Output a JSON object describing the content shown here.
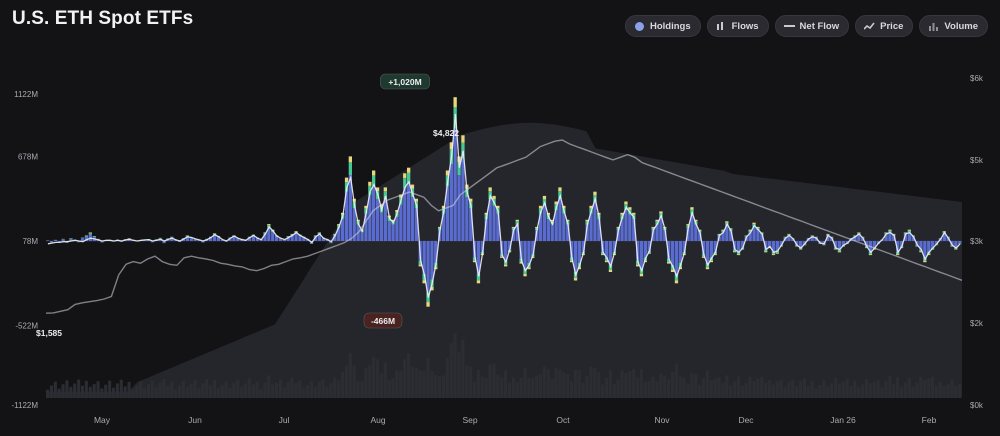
{
  "title": "U.S. ETH Spot ETFs",
  "toggles": [
    {
      "label": "Holdings",
      "icon": "holdings-dot-icon"
    },
    {
      "label": "Flows",
      "icon": "bar-chart-icon"
    },
    {
      "label": "Net Flow",
      "icon": "dash-line-icon"
    },
    {
      "label": "Price",
      "icon": "trend-line-icon"
    },
    {
      "label": "Volume",
      "icon": "volume-bars-icon"
    }
  ],
  "colors": {
    "flow_blue": "#5a6cd0",
    "flow_green": "#47c995",
    "flow_yellow": "#e8d77a",
    "price_line": "#d8d9e6",
    "net_flow_line": "#eef0f8",
    "holdings_area": "#26272d",
    "volume_bars": "#2c2d33",
    "badge_pos": "#1e3a2e",
    "badge_neg": "#4a2220"
  },
  "chart_data": {
    "type": "bar",
    "left_axis": {
      "ticks": [
        {
          "label": "1122M",
          "value": 1122
        },
        {
          "label": "678M",
          "value": 678
        },
        {
          "label": "78M",
          "value": 78
        },
        {
          "label": "-522M",
          "value": -522
        },
        {
          "label": "-1122M",
          "value": -1122
        }
      ],
      "range": [
        -1122,
        1122
      ]
    },
    "right_axis": {
      "ticks": [
        {
          "label": "$6k",
          "value": 6000
        },
        {
          "label": "$5k",
          "value": 5000
        },
        {
          "label": "$3k",
          "value": 3000
        },
        {
          "label": "$2k",
          "value": 2000
        },
        {
          "label": "$0k",
          "value": 0
        }
      ]
    },
    "x_labels": [
      "May",
      "Jun",
      "Jul",
      "Aug",
      "Sep",
      "Oct",
      "Nov",
      "Dec",
      "Jan 26",
      "Feb"
    ],
    "annotations": {
      "peak_inflow": "+1,020M",
      "peak_outflow": "-466M",
      "price_peak": "$4,822",
      "price_start": "$1,585"
    },
    "flows_million": [
      5,
      -10,
      8,
      -6,
      15,
      -12,
      20,
      10,
      -8,
      25,
      40,
      60,
      35,
      15,
      -10,
      5,
      8,
      -5,
      10,
      -6,
      12,
      20,
      8,
      -4,
      6,
      10,
      14,
      -8,
      12,
      22,
      -15,
      18,
      30,
      10,
      -6,
      20,
      40,
      25,
      15,
      8,
      -10,
      15,
      30,
      55,
      35,
      10,
      -5,
      25,
      40,
      20,
      15,
      10,
      30,
      45,
      25,
      15,
      60,
      120,
      80,
      40,
      20,
      10,
      35,
      50,
      70,
      45,
      30,
      15,
      -20,
      40,
      60,
      25,
      15,
      -15,
      50,
      120,
      200,
      450,
      600,
      300,
      150,
      80,
      250,
      420,
      500,
      380,
      260,
      380,
      180,
      150,
      220,
      330,
      480,
      520,
      400,
      300,
      -180,
      -300,
      -466,
      -350,
      -200,
      100,
      250,
      500,
      700,
      1020,
      600,
      750,
      400,
      300,
      -150,
      -300,
      -100,
      200,
      380,
      320,
      250,
      -120,
      -180,
      -80,
      100,
      150,
      -160,
      -250,
      -200,
      -120,
      100,
      250,
      320,
      200,
      150,
      280,
      380,
      250,
      150,
      -150,
      -280,
      -200,
      -100,
      150,
      250,
      350,
      200,
      -100,
      -150,
      -220,
      -100,
      100,
      200,
      280,
      240,
      200,
      -180,
      -250,
      -150,
      -90,
      100,
      150,
      210,
      100,
      -160,
      -220,
      -300,
      -200,
      -100,
      120,
      240,
      150,
      80,
      -120,
      -200,
      -150,
      -100,
      50,
      80,
      140,
      90,
      -80,
      -100,
      -60,
      40,
      80,
      130,
      100,
      60,
      -80,
      -50,
      -100,
      -90,
      -40,
      30,
      50,
      20,
      -40,
      -60,
      -30,
      20,
      40,
      30,
      -20,
      -30,
      50,
      30,
      -60,
      -80,
      -40,
      -20,
      20,
      40,
      60,
      30,
      -50,
      -100,
      -60,
      -20,
      10,
      60,
      80,
      50,
      -100,
      -50,
      60,
      80,
      40,
      -40,
      -80,
      -150,
      -100,
      -60,
      -30,
      20,
      70,
      30,
      -40,
      -60,
      -20
    ],
    "net_flow_million": [
      -20,
      -15,
      -10,
      -10,
      -5,
      -5,
      0,
      5,
      0,
      -5,
      10,
      20,
      15,
      8,
      0,
      5,
      5,
      0,
      5,
      0,
      8,
      12,
      6,
      0,
      5,
      8,
      10,
      0,
      6,
      12,
      0,
      12,
      20,
      8,
      0,
      15,
      30,
      25,
      15,
      8,
      0,
      10,
      25,
      45,
      30,
      10,
      0,
      20,
      35,
      20,
      10,
      5,
      25,
      40,
      20,
      10,
      50,
      100,
      70,
      35,
      20,
      10,
      25,
      40,
      60,
      40,
      25,
      10,
      -10,
      30,
      50,
      20,
      10,
      -5,
      40,
      100,
      180,
      380,
      450,
      250,
      120,
      70,
      200,
      350,
      400,
      330,
      220,
      320,
      160,
      130,
      200,
      290,
      380,
      420,
      330,
      250,
      -140,
      -240,
      -400,
      -300,
      -160,
      80,
      210,
      420,
      600,
      900,
      520,
      640,
      350,
      250,
      -110,
      -250,
      -80,
      170,
      320,
      270,
      210,
      -100,
      -150,
      -60,
      80,
      120,
      -140,
      -210,
      -170,
      -100,
      80,
      210,
      270,
      170,
      120,
      240,
      320,
      210,
      120,
      -120,
      -240,
      -170,
      -80,
      120,
      210,
      300,
      170,
      -80,
      -120,
      -180,
      -80,
      80,
      170,
      240,
      200,
      170,
      -150,
      -210,
      -120,
      -70,
      80,
      120,
      180,
      80,
      -130,
      -180,
      -250,
      -170,
      -80,
      100,
      200,
      120,
      60,
      -100,
      -170,
      -120,
      -80,
      40,
      60,
      120,
      70,
      -60,
      -80,
      -50,
      30,
      60,
      110,
      80,
      50,
      -60,
      -40,
      -80,
      -70,
      -30,
      20,
      40,
      15,
      -30,
      -50,
      -20,
      15,
      30,
      20,
      -15,
      -20,
      40,
      20,
      -50,
      -60,
      -30,
      -15,
      15,
      30,
      50,
      20,
      -40,
      -80,
      -50,
      -15,
      10,
      50,
      60,
      40,
      -80,
      -40,
      50,
      60,
      30,
      -30,
      -60,
      -130,
      -80,
      -50,
      -20,
      15,
      60,
      20,
      -30,
      -50,
      -20
    ],
    "price_usd": [
      1585,
      1590,
      1620,
      1650,
      1750,
      1780,
      1800,
      1820,
      1850,
      1900,
      2300,
      2500,
      2550,
      2520,
      2600,
      2650,
      2550,
      2500,
      2480,
      2620,
      2650,
      2620,
      2600,
      2570,
      2520,
      2500,
      2470,
      2450,
      2400,
      2380,
      2420,
      2480,
      2500,
      2550,
      2600,
      2620,
      2650,
      2700,
      2750,
      2800,
      2850,
      2900,
      2980,
      3100,
      3300,
      3500,
      3600,
      3700,
      3750,
      3800,
      3850,
      3800,
      3750,
      3600,
      3500,
      3550,
      3600,
      3800,
      3900,
      4000,
      4100,
      4200,
      4300,
      4350,
      4400,
      4450,
      4500,
      4600,
      4700,
      4750,
      4800,
      4822,
      4750,
      4700,
      4650,
      4600,
      4550,
      4500,
      4450,
      4500,
      4550,
      4500,
      4400,
      4350,
      4300,
      4250,
      4200,
      4150,
      4100,
      4050,
      4000,
      3950,
      3900,
      3850,
      3800,
      3750,
      3700,
      3650,
      3600,
      3550,
      3500,
      3450,
      3400,
      3350,
      3300,
      3250,
      3200,
      3150,
      3100,
      3050,
      3000,
      2950,
      2900,
      2850,
      2800,
      2750,
      2700,
      2650,
      2600,
      2550,
      2500,
      2450,
      2400,
      2350,
      2300,
      2250,
      2200
    ]
  }
}
